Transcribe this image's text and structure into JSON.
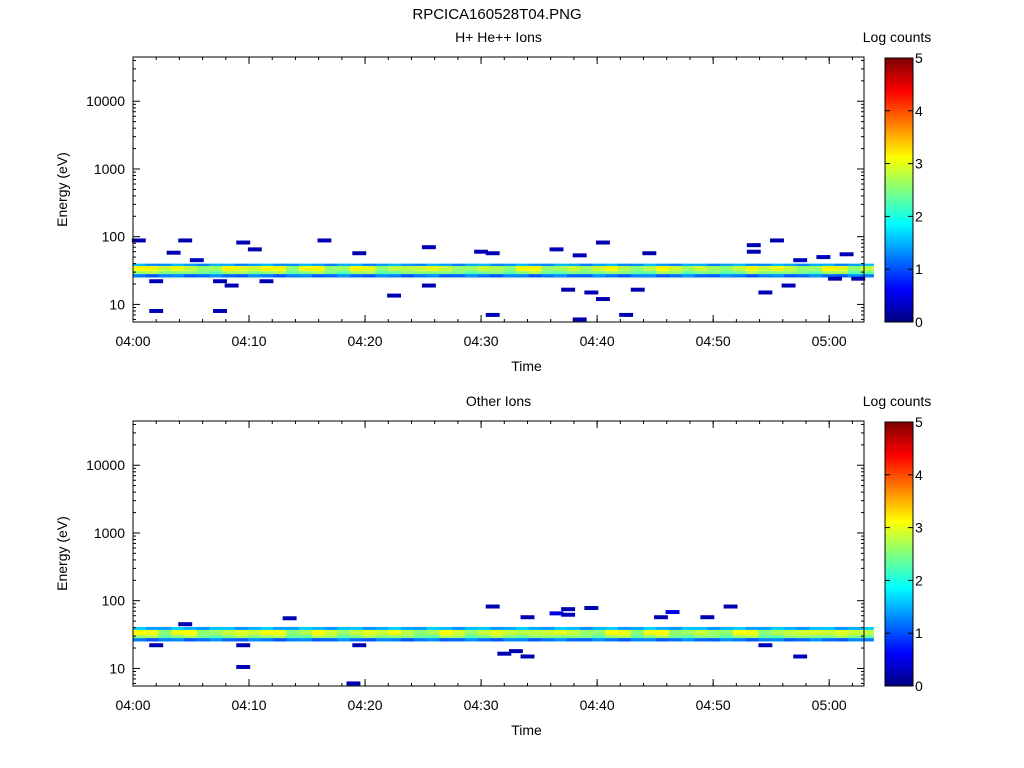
{
  "title": "RPCICA160528T04.PNG",
  "colorbar": {
    "label": "Log counts",
    "range": [
      0,
      5
    ],
    "ticks": [
      "0",
      "1",
      "2",
      "3",
      "4",
      "5"
    ],
    "colormap": "jet"
  },
  "chart_data": [
    {
      "type": "heatmap",
      "title": "H+ He++ Ions",
      "xlabel": "Time",
      "ylabel": "Energy (eV)",
      "x_range": [
        "04:00",
        "05:03"
      ],
      "x_ticks": [
        "04:00",
        "04:10",
        "04:20",
        "04:30",
        "04:40",
        "04:50",
        "05:00"
      ],
      "y_scale": "log",
      "y_range": [
        5.5,
        45000
      ],
      "y_ticks": [
        "10",
        "100",
        "1000",
        "10000"
      ],
      "colorbar_label": "Log counts",
      "band": {
        "note_units": "energy in eV, time in minutes after 04:00, values in log counts",
        "core": [
          {
            "e_min": 28,
            "e_max": 31,
            "value": 2.4
          },
          {
            "e_min": 31,
            "e_max": 37,
            "value": 2.7
          },
          {
            "e_min": 37,
            "e_max": 40,
            "value": 1.4
          },
          {
            "e_min": 25,
            "e_max": 28,
            "value": 1.2
          }
        ],
        "bright_times": [
          1.5,
          3.5,
          8.5,
          11.5,
          15.5,
          19.5,
          25.5,
          34.5,
          40.5,
          46.5,
          54.5,
          60.5
        ],
        "cells": [
          {
            "t": 0.5,
            "e": 88,
            "v": 0.25
          },
          {
            "t": 2,
            "e": 22,
            "v": 0.25
          },
          {
            "t": 2,
            "e": 8,
            "v": 0.25
          },
          {
            "t": 3.5,
            "e": 58,
            "v": 0.25
          },
          {
            "t": 4.5,
            "e": 88,
            "v": 0.25
          },
          {
            "t": 5.5,
            "e": 45,
            "v": 0.3
          },
          {
            "t": 7.5,
            "e": 22,
            "v": 0.25
          },
          {
            "t": 7.5,
            "e": 8,
            "v": 0.25
          },
          {
            "t": 8.5,
            "e": 19,
            "v": 0.25
          },
          {
            "t": 9.5,
            "e": 82,
            "v": 0.25
          },
          {
            "t": 10.5,
            "e": 65,
            "v": 0.25
          },
          {
            "t": 11.5,
            "e": 22,
            "v": 0.25
          },
          {
            "t": 16.5,
            "e": 88,
            "v": 0.25
          },
          {
            "t": 19.5,
            "e": 57,
            "v": 0.25
          },
          {
            "t": 22.5,
            "e": 13.5,
            "v": 0.25
          },
          {
            "t": 25.5,
            "e": 70,
            "v": 0.25
          },
          {
            "t": 25.5,
            "e": 19,
            "v": 0.25
          },
          {
            "t": 30,
            "e": 60,
            "v": 0.25
          },
          {
            "t": 31,
            "e": 57,
            "v": 0.25
          },
          {
            "t": 31,
            "e": 7,
            "v": 0.25
          },
          {
            "t": 36.5,
            "e": 65,
            "v": 0.25
          },
          {
            "t": 37.5,
            "e": 16.5,
            "v": 0.25
          },
          {
            "t": 38.5,
            "e": 53,
            "v": 0.25
          },
          {
            "t": 38.5,
            "e": 6,
            "v": 0.25
          },
          {
            "t": 39.5,
            "e": 15,
            "v": 0.25
          },
          {
            "t": 40.5,
            "e": 82,
            "v": 0.25
          },
          {
            "t": 40.5,
            "e": 12,
            "v": 0.25
          },
          {
            "t": 42.5,
            "e": 7,
            "v": 0.25
          },
          {
            "t": 43.5,
            "e": 16.5,
            "v": 0.25
          },
          {
            "t": 44.5,
            "e": 57,
            "v": 0.25
          },
          {
            "t": 53.5,
            "e": 75,
            "v": 0.25
          },
          {
            "t": 53.5,
            "e": 60,
            "v": 0.25
          },
          {
            "t": 54.5,
            "e": 15,
            "v": 0.25
          },
          {
            "t": 55.5,
            "e": 88,
            "v": 0.25
          },
          {
            "t": 56.5,
            "e": 19,
            "v": 0.25
          },
          {
            "t": 57.5,
            "e": 45,
            "v": 0.3
          },
          {
            "t": 59.5,
            "e": 50,
            "v": 0.3
          },
          {
            "t": 60.5,
            "e": 24,
            "v": 0.25
          },
          {
            "t": 61.5,
            "e": 55,
            "v": 0.25
          },
          {
            "t": 62.5,
            "e": 24,
            "v": 0.25
          }
        ]
      }
    },
    {
      "type": "heatmap",
      "title": "Other Ions",
      "xlabel": "Time",
      "ylabel": "Energy (eV)",
      "x_range": [
        "04:00",
        "05:03"
      ],
      "x_ticks": [
        "04:00",
        "04:10",
        "04:20",
        "04:30",
        "04:40",
        "04:50",
        "05:00"
      ],
      "y_scale": "log",
      "y_range": [
        5.5,
        45000
      ],
      "y_ticks": [
        "10",
        "100",
        "1000",
        "10000"
      ],
      "colorbar_label": "Log counts",
      "band": {
        "note_units": "energy in eV, time in minutes after 04:00, values in log counts",
        "core": [
          {
            "e_min": 28,
            "e_max": 31,
            "value": 2.4
          },
          {
            "e_min": 31,
            "e_max": 37,
            "value": 2.7
          },
          {
            "e_min": 37,
            "e_max": 41,
            "value": 1.5
          },
          {
            "e_min": 25,
            "e_max": 28,
            "value": 1.2
          }
        ],
        "bright_times": [
          1.5,
          4.5,
          9.5,
          12.5,
          16.5,
          21.5,
          27.5,
          31.5,
          36.5,
          41.5,
          45.5,
          52.5,
          58.5,
          61.5
        ],
        "cells": [
          {
            "t": 2,
            "e": 22,
            "v": 0.25
          },
          {
            "t": 4.5,
            "e": 45,
            "v": 0.3
          },
          {
            "t": 9.5,
            "e": 10.5,
            "v": 0.25
          },
          {
            "t": 9.5,
            "e": 22,
            "v": 0.25
          },
          {
            "t": 13.5,
            "e": 55,
            "v": 0.25
          },
          {
            "t": 19,
            "e": 6,
            "v": 0.25
          },
          {
            "t": 19.5,
            "e": 22,
            "v": 0.25
          },
          {
            "t": 31,
            "e": 82,
            "v": 0.25
          },
          {
            "t": 32,
            "e": 16.5,
            "v": 0.25
          },
          {
            "t": 33,
            "e": 18,
            "v": 0.25
          },
          {
            "t": 34,
            "e": 57,
            "v": 0.25
          },
          {
            "t": 34,
            "e": 15,
            "v": 0.25
          },
          {
            "t": 36.5,
            "e": 65,
            "v": 0.5
          },
          {
            "t": 37.5,
            "e": 62,
            "v": 0.3
          },
          {
            "t": 37.5,
            "e": 75,
            "v": 0.25
          },
          {
            "t": 39.5,
            "e": 78,
            "v": 0.25
          },
          {
            "t": 45.5,
            "e": 57,
            "v": 0.25
          },
          {
            "t": 46.5,
            "e": 68,
            "v": 0.5
          },
          {
            "t": 49.5,
            "e": 57,
            "v": 0.25
          },
          {
            "t": 51.5,
            "e": 82,
            "v": 0.25
          },
          {
            "t": 54.5,
            "e": 22,
            "v": 0.25
          },
          {
            "t": 57.5,
            "e": 15,
            "v": 0.25
          }
        ]
      }
    }
  ]
}
